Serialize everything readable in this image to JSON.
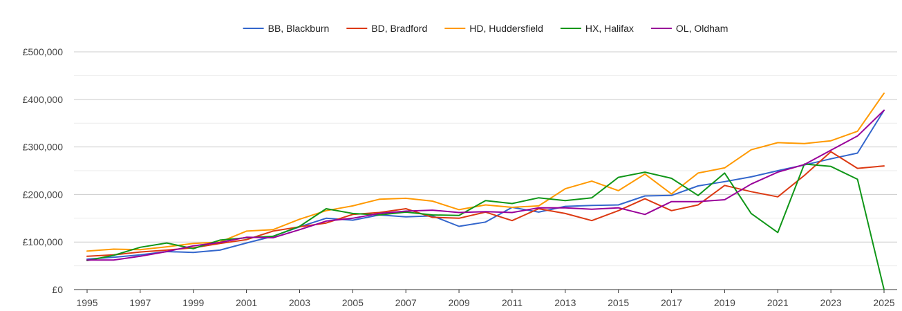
{
  "chart_data": {
    "type": "line",
    "title": "",
    "xlabel": "",
    "ylabel": "",
    "x": [
      1995,
      1996,
      1997,
      1998,
      1999,
      2000,
      2001,
      2002,
      2003,
      2004,
      2005,
      2006,
      2007,
      2008,
      2009,
      2010,
      2011,
      2012,
      2013,
      2014,
      2015,
      2016,
      2017,
      2018,
      2019,
      2020,
      2021,
      2022,
      2023,
      2024,
      2025
    ],
    "x_tick_labels": [
      "1995",
      "1997",
      "1999",
      "2001",
      "2003",
      "2005",
      "2007",
      "2009",
      "2011",
      "2013",
      "2015",
      "2017",
      "2019",
      "2021",
      "2023",
      "2025"
    ],
    "y_tick_labels": [
      "£0",
      "£100,000",
      "£200,000",
      "£300,000",
      "£400,000",
      "£500,000"
    ],
    "ylim": [
      0,
      500000
    ],
    "ygrid_step": 50000,
    "legend_position": "top",
    "series": [
      {
        "name": "BB, Blackburn",
        "color": "#3366cc",
        "values": [
          64000,
          68000,
          73000,
          80000,
          78000,
          83000,
          98000,
          112000,
          132000,
          150000,
          146000,
          157000,
          153000,
          155000,
          133000,
          142000,
          173000,
          163000,
          175000,
          177000,
          178000,
          197000,
          198000,
          218000,
          227000,
          237000,
          250000,
          262000,
          275000,
          287000,
          377000
        ]
      },
      {
        "name": "BD, Bradford",
        "color": "#dc3912",
        "values": [
          70000,
          73000,
          79000,
          83000,
          88000,
          97000,
          105000,
          123000,
          132000,
          140000,
          158000,
          162000,
          170000,
          152000,
          150000,
          163000,
          145000,
          170000,
          160000,
          145000,
          166000,
          191000,
          166000,
          178000,
          219000,
          206000,
          195000,
          240000,
          290000,
          255000,
          260000
        ]
      },
      {
        "name": "HD, Huddersfield",
        "color": "#ff9900",
        "values": [
          81000,
          85000,
          84000,
          90000,
          97000,
          100000,
          123000,
          126000,
          148000,
          166000,
          176000,
          190000,
          192000,
          186000,
          168000,
          178000,
          173000,
          176000,
          212000,
          228000,
          208000,
          243000,
          201000,
          245000,
          256000,
          294000,
          309000,
          307000,
          313000,
          333000,
          413000
        ]
      },
      {
        "name": "HX, Halifax",
        "color": "#109618",
        "values": [
          61000,
          72000,
          89000,
          98000,
          86000,
          104000,
          109000,
          112000,
          133000,
          170000,
          160000,
          157000,
          163000,
          157000,
          156000,
          187000,
          181000,
          193000,
          187000,
          193000,
          236000,
          247000,
          234000,
          198000,
          245000,
          160000,
          120000,
          264000,
          259000,
          232000,
          0
        ]
      },
      {
        "name": "OL, Oldham",
        "color": "#990099",
        "values": [
          62000,
          62000,
          70000,
          80000,
          92000,
          99000,
          110000,
          109000,
          126000,
          144000,
          150000,
          160000,
          165000,
          167000,
          162000,
          164000,
          162000,
          172000,
          172000,
          169000,
          172000,
          158000,
          185000,
          185000,
          189000,
          222000,
          247000,
          263000,
          293000,
          323000,
          377000
        ]
      }
    ]
  }
}
